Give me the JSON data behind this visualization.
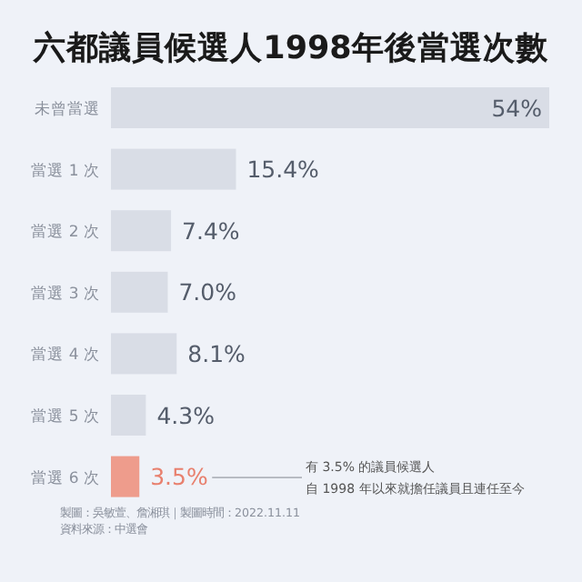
{
  "chart_data": {
    "type": "bar",
    "orientation": "horizontal",
    "title": "六都議員候選人1998年後當選次數",
    "categories": [
      "未曾當選",
      "當選 1 次",
      "當選 2 次",
      "當選 3 次",
      "當選 4 次",
      "當選 5 次",
      "當選 6 次"
    ],
    "values": [
      54,
      15.4,
      7.4,
      7.0,
      8.1,
      4.3,
      3.5
    ],
    "value_labels": [
      "54%",
      "15.4%",
      "7.4%",
      "7.0%",
      "8.1%",
      "4.3%",
      "3.5%"
    ],
    "colors": [
      "#d9dde6",
      "#d9dde6",
      "#d9dde6",
      "#d9dde6",
      "#d9dde6",
      "#d9dde6",
      "#ee9c8c"
    ],
    "annotations": [
      "有 3.5% 的議員候選人",
      "自 1998 年以來就擔任議員且連任至今",
      "製圖：吳敏萱、詹湘琪｜製圖時間：2022.11.11",
      "資料來源：中選會"
    ]
  }
}
